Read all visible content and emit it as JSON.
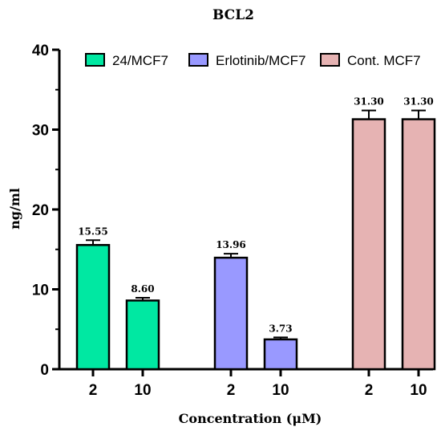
{
  "chart_data": {
    "type": "bar",
    "title": "BCL2",
    "xlabel": "Concentration (μM)",
    "ylabel": "ng/ml",
    "ylim": [
      0,
      40
    ],
    "yticks": [
      0,
      10,
      20,
      30,
      40
    ],
    "grid": false,
    "legend_position": "top-right",
    "series": [
      {
        "name": "24/MCF7",
        "color": "#00E8A2",
        "points": [
          {
            "x": "2",
            "value": 15.55,
            "error": 0.6,
            "label": "15.55"
          },
          {
            "x": "10",
            "value": 8.6,
            "error": 0.35,
            "label": "8.60"
          }
        ]
      },
      {
        "name": "Erlotinib/MCF7",
        "color": "#9999FF",
        "points": [
          {
            "x": "2",
            "value": 13.96,
            "error": 0.5,
            "label": "13.96"
          },
          {
            "x": "10",
            "value": 3.73,
            "error": 0.25,
            "label": "3.73"
          }
        ]
      },
      {
        "name": "Cont. MCF7",
        "color": "#E6B3B3",
        "points": [
          {
            "x": "2",
            "value": 31.3,
            "error": 1.1,
            "label": "31.30"
          },
          {
            "x": "10",
            "value": 31.3,
            "error": 1.1,
            "label": "31.30"
          }
        ]
      }
    ]
  }
}
